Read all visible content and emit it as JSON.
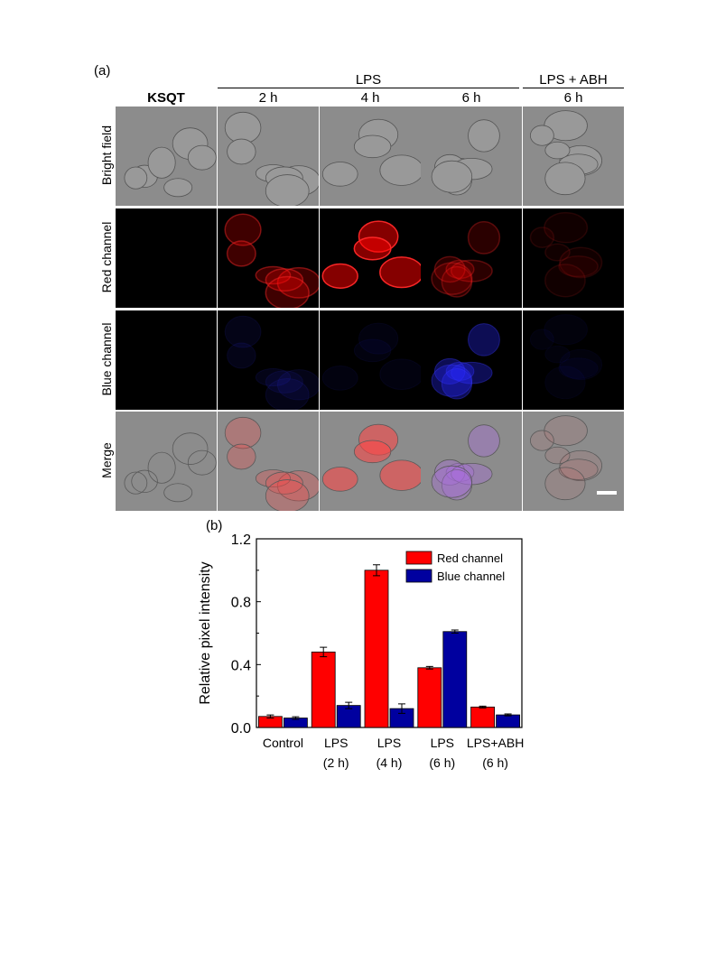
{
  "figure": {
    "panel_a_label": "(a)",
    "panel_b_label": "(b)",
    "top_left_label": "KSQT",
    "groups": [
      {
        "label": "LPS"
      },
      {
        "label": "LPS + ABH"
      }
    ],
    "columns": [
      {
        "label": ""
      },
      {
        "label": "2 h"
      },
      {
        "label": "4 h"
      },
      {
        "label": "6 h"
      },
      {
        "label": "6 h"
      }
    ],
    "rows": [
      {
        "label": "Bright field"
      },
      {
        "label": "Red channel"
      },
      {
        "label": "Blue channel"
      },
      {
        "label": "Merge"
      }
    ],
    "colors": {
      "red_channel": "#ff0000",
      "blue_channel": "#000080",
      "bright_bg": "#8c8c8c"
    }
  },
  "chart_data": {
    "type": "bar",
    "ylabel": "Relative pixel intensity",
    "xlabel": "",
    "ylim": [
      0,
      1.2
    ],
    "yticks": [
      "0.0",
      "0.4",
      "0.8",
      "1.2"
    ],
    "ytick_values": [
      0,
      0.4,
      0.8,
      1.2
    ],
    "categories": [
      {
        "line1": "Control",
        "line2": ""
      },
      {
        "line1": "LPS",
        "line2": "(2 h)"
      },
      {
        "line1": "LPS",
        "line2": "(4 h)"
      },
      {
        "line1": "LPS",
        "line2": "(6 h)"
      },
      {
        "line1": "LPS+ABH",
        "line2": "(6 h)"
      }
    ],
    "series": [
      {
        "name": "Red channel",
        "color": "#ff0000",
        "values": [
          0.07,
          0.48,
          1.0,
          0.38,
          0.13
        ],
        "errors": [
          0.01,
          0.03,
          0.035,
          0.008,
          0.006
        ]
      },
      {
        "name": "Blue channel",
        "color": "#00009f",
        "values": [
          0.06,
          0.14,
          0.12,
          0.61,
          0.08
        ],
        "errors": [
          0.008,
          0.02,
          0.03,
          0.01,
          0.006
        ]
      }
    ],
    "legend_position": "top-right"
  }
}
